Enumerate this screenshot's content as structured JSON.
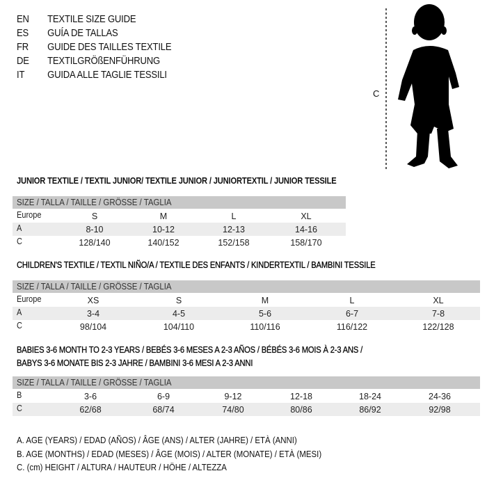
{
  "languages": [
    {
      "code": "EN",
      "title": "TEXTILE SIZE GUIDE"
    },
    {
      "code": "ES",
      "title": "GUÍA DE TALLAS"
    },
    {
      "code": "FR",
      "title": "GUIDE DES TAILLES TEXTILE"
    },
    {
      "code": "DE",
      "title": "TEXTILGRÖßENFÜHRUNG"
    },
    {
      "code": "IT",
      "title": "GUIDA ALLE TAGLIE TESSILI"
    }
  ],
  "figure": {
    "measure_label": "C",
    "icon": "child-silhouette"
  },
  "size_header": "SIZE / TALLA / TAILLE / GRÖSSE / TAGLIA",
  "junior": {
    "heading": "JUNIOR TEXTILE / TEXTIL JUNIOR/ TEXTILE JUNIOR / JUNIORTEXTIL / JUNIOR TESSILE",
    "rows": [
      {
        "label": "Europe",
        "values": [
          "S",
          "M",
          "L",
          "XL"
        ]
      },
      {
        "label": "A",
        "values": [
          "8-10",
          "10-12",
          "12-13",
          "14-16"
        ]
      },
      {
        "label": "C",
        "values": [
          "128/140",
          "140/152",
          "152/158",
          "158/170"
        ]
      }
    ]
  },
  "children": {
    "heading": "CHILDREN'S TEXTILE / TEXTIL NIÑO/A / TEXTILE DES ENFANTS / KINDERTEXTIL / BAMBINI TESSILE",
    "rows": [
      {
        "label": "Europe",
        "values": [
          "XS",
          "S",
          "M",
          "L",
          "XL"
        ]
      },
      {
        "label": "A",
        "values": [
          "3-4",
          "4-5",
          "5-6",
          "6-7",
          "7-8"
        ]
      },
      {
        "label": "C",
        "values": [
          "98/104",
          "104/110",
          "110/116",
          "116/122",
          "122/128"
        ]
      }
    ]
  },
  "babies": {
    "heading_1": "BABIES 3-6 MONTH TO 2-3 YEARS / BEBÉS 3-6 MESES A 2-3 AÑOS / BÉBÉS 3-6 MOIS À 2-3 ANS /",
    "heading_2": "BABYS 3-6 MONATE BIS 2-3 JAHRE / BAMBINI 3-6 MESI A 2-3 ANNI",
    "rows": [
      {
        "label": "B",
        "values": [
          "3-6",
          "6-9",
          "9-12",
          "12-18",
          "18-24",
          "24-36"
        ]
      },
      {
        "label": "C",
        "values": [
          "62/68",
          "68/74",
          "74/80",
          "80/86",
          "86/92",
          "92/98"
        ]
      }
    ]
  },
  "legend": [
    "A. AGE (YEARS) / EDAD (AÑOS) / ÂGE (ANS) / ALTER (JAHRE) / ETÀ (ANNI)",
    "B. AGE (MONTHS) / EDAD (MESES) / ÂGE (MOIS) / ALTER (MONATE) / ETÀ (MESI)",
    "C. (cm) HEIGHT / ALTURA / HAUTEUR / HÖHE / ALTEZZA"
  ]
}
